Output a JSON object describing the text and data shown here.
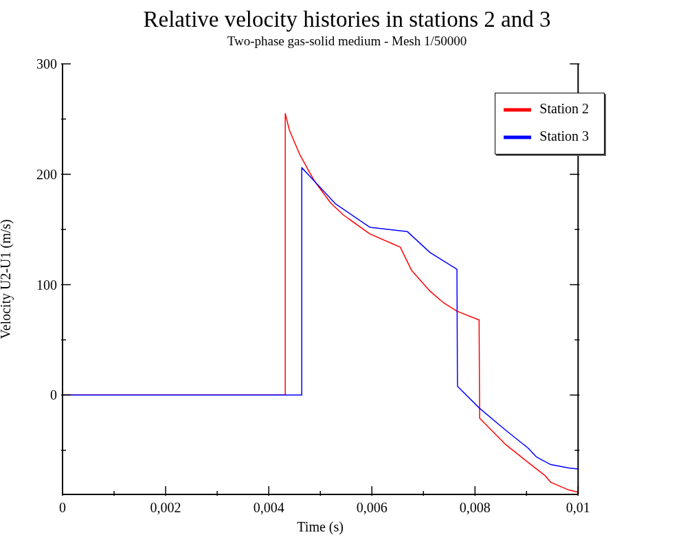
{
  "chart_data": {
    "type": "line",
    "title": "Relative velocity histories in stations 2 and 3",
    "subtitle": "Two-phase gas-solid medium - Mesh 1/50000",
    "xlabel": "Time (s)",
    "ylabel": "Velocity U2-U1 (m/s)",
    "series": [
      {
        "name": "Station 2",
        "color": "#ff0000",
        "x": [
          0,
          0.00432,
          0.00432,
          0.0044,
          0.0046,
          0.0048,
          0.0049,
          0.0052,
          0.00545,
          0.00596,
          0.0064,
          0.00655,
          0.00677,
          0.00713,
          0.00738,
          0.00765,
          0.00808,
          0.00809,
          0.0086,
          0.00903,
          0.00936,
          0.00947,
          0.00982,
          0.01
        ],
        "values": [
          0,
          0,
          255,
          240,
          218,
          201,
          193,
          174,
          163,
          146,
          137,
          134,
          113,
          94,
          84,
          76,
          68,
          -21,
          -45,
          -61,
          -73,
          -79,
          -86,
          -88
        ]
      },
      {
        "name": "Station 3",
        "color": "#0000ff",
        "x": [
          0,
          0.00464,
          0.00464,
          0.0049,
          0.0053,
          0.00596,
          0.00669,
          0.00713,
          0.00765,
          0.00766,
          0.00809,
          0.0086,
          0.00903,
          0.00919,
          0.00947,
          0.00982,
          0.01
        ],
        "values": [
          0,
          0,
          206,
          193,
          173,
          152,
          148,
          129,
          114,
          8,
          -12,
          -32,
          -48,
          -56,
          -63,
          -66,
          -67
        ]
      }
    ],
    "xlim": [
      0,
      0.01
    ],
    "ylim": [
      -90,
      300
    ],
    "xticks": [
      0,
      {
        "value": 0.001,
        "label": null
      },
      {
        "value": 0.002,
        "label": "0,002"
      },
      {
        "value": 0.003,
        "label": null
      },
      {
        "value": 0.004,
        "label": "0,004"
      },
      {
        "value": 0.005,
        "label": null
      },
      {
        "value": 0.006,
        "label": "0,006"
      },
      {
        "value": 0.007,
        "label": null
      },
      {
        "value": 0.008,
        "label": "0,008"
      },
      {
        "value": 0.009,
        "label": null
      },
      {
        "value": 0.01,
        "label": "0,01"
      }
    ],
    "yticks": [
      {
        "value": -50,
        "label": null
      },
      0,
      {
        "value": 50,
        "label": null
      },
      100,
      {
        "value": 150,
        "label": null
      },
      200,
      {
        "value": 250,
        "label": null
      },
      300
    ],
    "grid": false,
    "legend": "top right",
    "marker": "none",
    "line_style": "solid"
  }
}
